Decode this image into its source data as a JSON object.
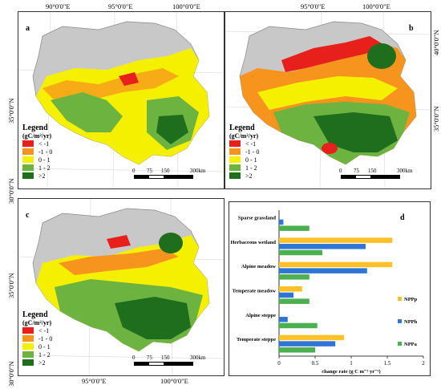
{
  "panels": [
    {
      "id": "a",
      "label": "a",
      "top_coords": [
        "90°0'0\"E",
        "95°0'0\"E",
        "100°0'0\"E"
      ],
      "left_coords": [
        "35°0'0\"N",
        "30°0'0\"N"
      ],
      "right_coords": [],
      "bottom_coords": [],
      "legend": {
        "title": "Legend",
        "unit": "(gC/m²/yr)",
        "items": [
          {
            "label": "< -1",
            "color": "#e8201c"
          },
          {
            "label": "-1 - 0",
            "color": "#f7941d"
          },
          {
            "label": "0 - 1",
            "color": "#f5f000"
          },
          {
            "label": "1 - 2",
            "color": "#6cb33f"
          },
          {
            "label": ">2",
            "color": "#1e6e1e"
          }
        ]
      },
      "scale": {
        "ticks": [
          "0",
          "75",
          "150",
          "300km"
        ]
      }
    },
    {
      "id": "b",
      "label": "b",
      "top_coords": [
        "95°0'0\"E",
        "100°0'0\"E"
      ],
      "left_coords": [],
      "right_coords": [
        "40°0'0\"N",
        "35°0'0\"N"
      ],
      "bottom_coords": [],
      "legend": {
        "title": "Legend",
        "unit": "(gC/m²/yr)",
        "items": [
          {
            "label": "< -1",
            "color": "#e8201c"
          },
          {
            "label": "-1 - 0",
            "color": "#f7941d"
          },
          {
            "label": "0 - 1",
            "color": "#f5f000"
          },
          {
            "label": "1 - 2",
            "color": "#6cb33f"
          },
          {
            "label": ">2",
            "color": "#1e6e1e"
          }
        ]
      },
      "scale": {
        "ticks": [
          "0",
          "75",
          "150",
          "300km"
        ]
      }
    },
    {
      "id": "c",
      "label": "c",
      "top_coords": [],
      "left_coords": [
        "35°0'0\"N",
        "30°0'0\"N"
      ],
      "right_coords": [],
      "bottom_coords": [
        "95°0'0\"E",
        "100°0'0\"E"
      ],
      "legend": {
        "title": "Legend",
        "unit": "(gC/m²/yr)",
        "items": [
          {
            "label": "< -1",
            "color": "#e8201c"
          },
          {
            "label": "-1 - 0",
            "color": "#f7941d"
          },
          {
            "label": "0 - 1",
            "color": "#f5f000"
          },
          {
            "label": "1 - 2",
            "color": "#6cb33f"
          },
          {
            "label": ">2",
            "color": "#1e6e1e"
          }
        ]
      },
      "scale": {
        "ticks": [
          "0",
          "75",
          "150",
          "300km"
        ]
      }
    }
  ],
  "chart_data": {
    "type": "bar",
    "label": "d",
    "orientation": "horizontal",
    "categories": [
      "Sparse grassland",
      "Herbaceous wetland",
      "Alpine meadow",
      "Temperate meadow",
      "Alpine steppe",
      "Temperate steppe"
    ],
    "series": [
      {
        "name": "NPPp",
        "color": "#ffc125",
        "values": [
          0.0,
          1.57,
          1.57,
          0.32,
          0.0,
          0.9
        ]
      },
      {
        "name": "NPPh",
        "color": "#2e75d6",
        "values": [
          0.06,
          1.2,
          1.22,
          0.2,
          0.12,
          0.78
        ]
      },
      {
        "name": "NPPa",
        "color": "#4caf50",
        "values": [
          0.42,
          0.6,
          0.42,
          0.42,
          0.53,
          0.5
        ]
      }
    ],
    "xlabel": "change rate (g C m⁻² yr⁻¹)",
    "xlim": [
      0,
      2
    ],
    "xticks": [
      "0",
      "0.5",
      "1",
      "1.5",
      "2"
    ],
    "legend_position": "right"
  }
}
